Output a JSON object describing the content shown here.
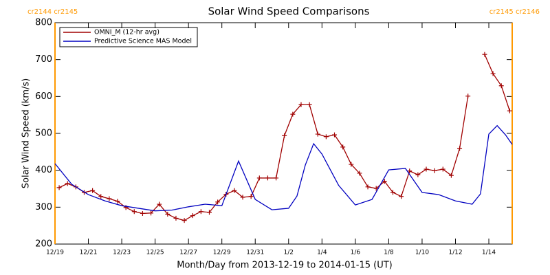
{
  "chart_data": {
    "type": "line",
    "title": "Solar Wind Speed Comparisons",
    "xlabel": "Month/Day from 2013-12-19 to 2014-01-15 (UT)",
    "ylabel": "Solar Wind Speed (km/s)",
    "xlim": [
      0,
      27.4
    ],
    "ylim": [
      200,
      800
    ],
    "xticks": [
      {
        "value": 0,
        "label": "12/19"
      },
      {
        "value": 2,
        "label": "12/21"
      },
      {
        "value": 4,
        "label": "12/23"
      },
      {
        "value": 6,
        "label": "12/25"
      },
      {
        "value": 8,
        "label": "12/27"
      },
      {
        "value": 10,
        "label": "12/29"
      },
      {
        "value": 12,
        "label": "12/31"
      },
      {
        "value": 14,
        "label": "1/2"
      },
      {
        "value": 16,
        "label": "1/4"
      },
      {
        "value": 18,
        "label": "1/6"
      },
      {
        "value": 20,
        "label": "1/8"
      },
      {
        "value": 22,
        "label": "1/10"
      },
      {
        "value": 24,
        "label": "1/12"
      },
      {
        "value": 26,
        "label": "1/14"
      }
    ],
    "yticks": [
      200,
      300,
      400,
      500,
      600,
      700,
      800
    ],
    "legend": "upper left",
    "markers": [
      {
        "x": 0,
        "label": "cr2144 cr2145",
        "color": "#ff9900"
      },
      {
        "x": 27.4,
        "label": "cr2145 cr2146",
        "color": "#ff9900"
      }
    ],
    "series": [
      {
        "name": "OMNI_M (12-hr avg)",
        "color": "#a00000",
        "marker": "+",
        "x": [
          0.25,
          0.75,
          1.25,
          1.75,
          2.25,
          2.75,
          3.25,
          3.75,
          4.25,
          4.75,
          5.25,
          5.75,
          6.25,
          6.75,
          7.25,
          7.75,
          8.25,
          8.75,
          9.25,
          9.75,
          10.25,
          10.75,
          11.25,
          11.75,
          12.25,
          12.75,
          13.25,
          13.75,
          14.25,
          14.75,
          15.25,
          15.75,
          16.25,
          16.75,
          17.25,
          17.75,
          18.25,
          18.75,
          19.25,
          19.75,
          20.25,
          20.75,
          21.25,
          21.75,
          22.25,
          22.75,
          23.25,
          23.75,
          24.25,
          24.75,
          25.25,
          25.75,
          26.25,
          26.75,
          27.25
        ],
        "values": [
          353,
          364,
          355,
          340,
          345,
          329,
          323,
          316,
          299,
          288,
          283,
          284,
          308,
          281,
          270,
          264,
          277,
          288,
          286,
          314,
          335,
          345,
          327,
          329,
          379,
          379,
          379,
          494,
          552,
          578,
          578,
          498,
          491,
          496,
          463,
          416,
          392,
          355,
          351,
          370,
          340,
          329,
          398,
          388,
          403,
          399,
          403,
          386,
          459,
          601,
          null,
          714,
          662,
          629,
          561
        ]
      },
      {
        "name": "Predictive Science MAS Model",
        "color": "#0000c0",
        "marker": "none",
        "x": [
          0,
          1,
          2,
          3,
          4,
          5,
          6,
          7,
          8,
          9,
          10,
          11,
          12,
          13,
          14,
          14.5,
          15,
          15.5,
          16,
          17,
          18,
          19,
          20,
          21,
          22,
          23,
          24,
          25,
          25.5,
          26,
          26.5,
          27,
          27.4
        ],
        "values": [
          418,
          362,
          334,
          317,
          304,
          297,
          290,
          292,
          301,
          308,
          304,
          425,
          321,
          293,
          297,
          330,
          414,
          472,
          444,
          359,
          306,
          321,
          401,
          405,
          340,
          334,
          317,
          308,
          336,
          498,
          521,
          496,
          470
        ]
      }
    ]
  }
}
